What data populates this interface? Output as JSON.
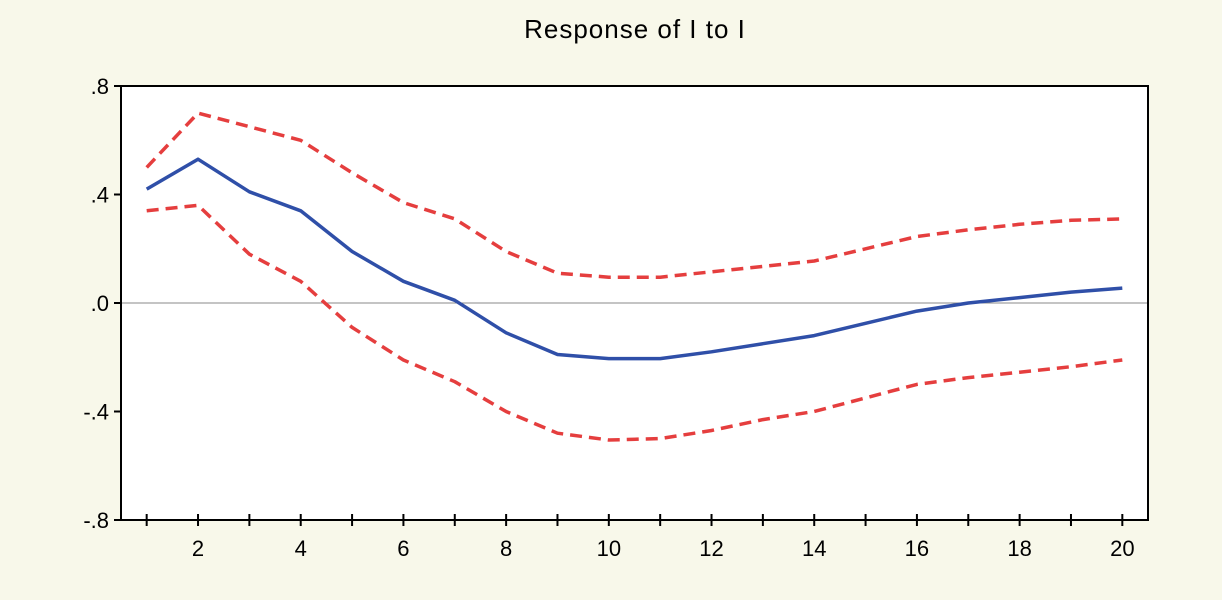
{
  "chart_data": {
    "type": "line",
    "title": "Response of I to I",
    "xlabel": "",
    "ylabel": "",
    "x": [
      1,
      2,
      3,
      4,
      5,
      6,
      7,
      8,
      9,
      10,
      11,
      12,
      13,
      14,
      15,
      16,
      17,
      18,
      19,
      20
    ],
    "xlim": [
      0.5,
      20.5
    ],
    "ylim": [
      -0.8,
      0.8
    ],
    "x_ticks": [
      2,
      4,
      6,
      8,
      10,
      12,
      14,
      16,
      18,
      20
    ],
    "x_tick_labels": [
      "2",
      "4",
      "6",
      "8",
      "10",
      "12",
      "14",
      "16",
      "18",
      "20"
    ],
    "y_ticks": [
      0.8,
      0.4,
      0.0,
      -0.4,
      -0.8
    ],
    "y_tick_labels": [
      ".8",
      ".4",
      ".0",
      "-.4",
      "-.8"
    ],
    "zero_line": true,
    "grid": false,
    "legend": false,
    "series": [
      {
        "color": "#2f4fa8",
        "style": "solid",
        "values": [
          0.42,
          0.53,
          0.41,
          0.34,
          0.19,
          0.08,
          0.01,
          -0.11,
          -0.19,
          -0.205,
          -0.205,
          -0.18,
          -0.15,
          -0.12,
          -0.075,
          -0.03,
          0.0,
          0.02,
          0.04,
          0.055
        ]
      },
      {
        "color": "#e53e3e",
        "style": "dashed",
        "values": [
          0.5,
          0.7,
          0.65,
          0.6,
          0.48,
          0.37,
          0.31,
          0.19,
          0.11,
          0.095,
          0.095,
          0.115,
          0.135,
          0.155,
          0.2,
          0.245,
          0.27,
          0.29,
          0.305,
          0.31
        ]
      },
      {
        "color": "#e53e3e",
        "style": "dashed",
        "values": [
          0.34,
          0.36,
          0.18,
          0.08,
          -0.09,
          -0.21,
          -0.29,
          -0.4,
          -0.48,
          -0.505,
          -0.5,
          -0.47,
          -0.43,
          -0.4,
          -0.35,
          -0.3,
          -0.275,
          -0.255,
          -0.235,
          -0.21
        ]
      }
    ]
  }
}
